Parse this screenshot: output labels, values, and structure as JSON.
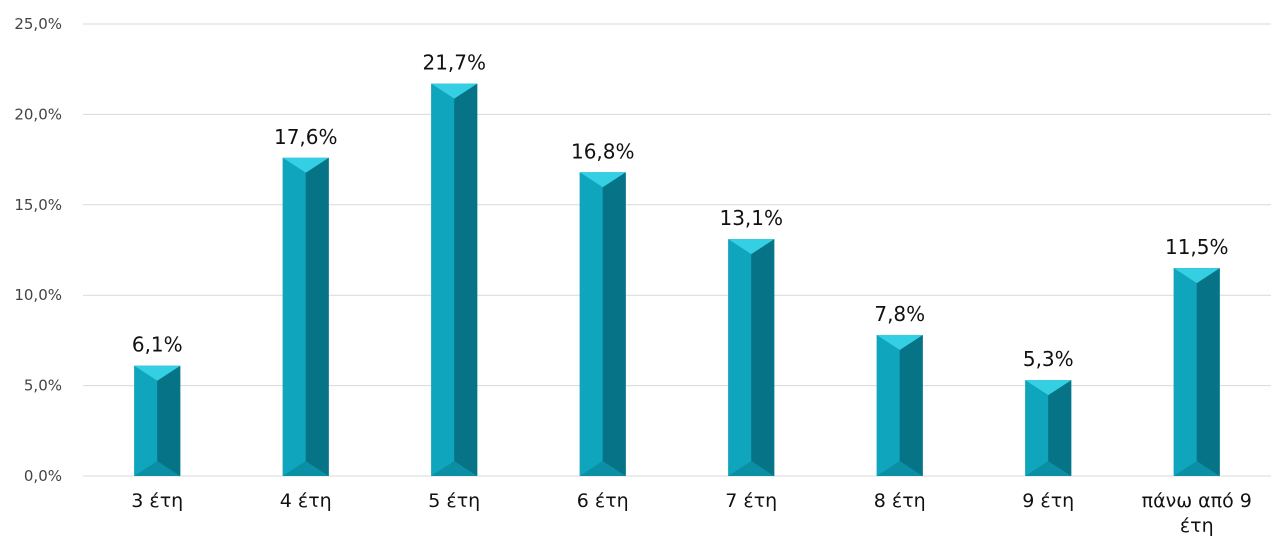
{
  "chart_data": {
    "type": "bar",
    "categories": [
      "3 έτη",
      "4 έτη",
      "5 έτη",
      "6 έτη",
      "7 έτη",
      "8 έτη",
      "9 έτη",
      "πάνω από 9 έτη"
    ],
    "values": [
      6.1,
      17.6,
      21.7,
      16.8,
      13.1,
      7.8,
      5.3,
      11.5
    ],
    "data_labels": [
      "6,1%",
      "17,6%",
      "21,7%",
      "16,8%",
      "13,1%",
      "7,8%",
      "5,3%",
      "11,5%"
    ],
    "y_ticks": [
      0,
      5,
      10,
      15,
      20,
      25
    ],
    "y_tick_labels": [
      "0,0%",
      "5,0%",
      "10,0%",
      "15,0%",
      "20,0%",
      "25,0%"
    ],
    "ylim": [
      0,
      25
    ],
    "grid": true,
    "legend": "none",
    "colors": {
      "bar_body": "#0a8fa4",
      "bar_left": "#0fa6bd",
      "bar_right": "#067387",
      "bar_top": "#35cfe3"
    }
  }
}
